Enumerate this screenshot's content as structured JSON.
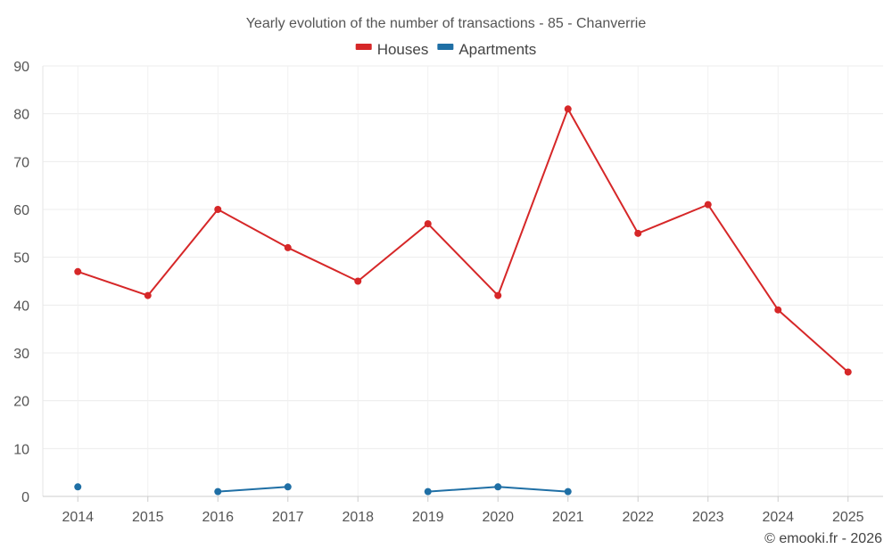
{
  "chart_data": {
    "type": "line",
    "title": "Yearly evolution of the number of transactions - 85 - Chanverrie",
    "xlabel": "",
    "ylabel": "",
    "categories": [
      "2014",
      "2015",
      "2016",
      "2017",
      "2018",
      "2019",
      "2020",
      "2021",
      "2022",
      "2023",
      "2024",
      "2025"
    ],
    "ylim": [
      0,
      90
    ],
    "yticks": [
      0,
      10,
      20,
      30,
      40,
      50,
      60,
      70,
      80,
      90
    ],
    "grid": true,
    "legend_position": "top-center",
    "series": [
      {
        "name": "Houses",
        "color": "#d62728",
        "values": [
          47,
          42,
          60,
          52,
          45,
          57,
          42,
          81,
          55,
          61,
          39,
          26
        ]
      },
      {
        "name": "Apartments",
        "color": "#1f6fa5",
        "values": [
          2,
          null,
          1,
          2,
          null,
          1,
          2,
          1,
          null,
          null,
          null,
          null
        ]
      }
    ],
    "credit": "© emooki.fr - 2026"
  }
}
